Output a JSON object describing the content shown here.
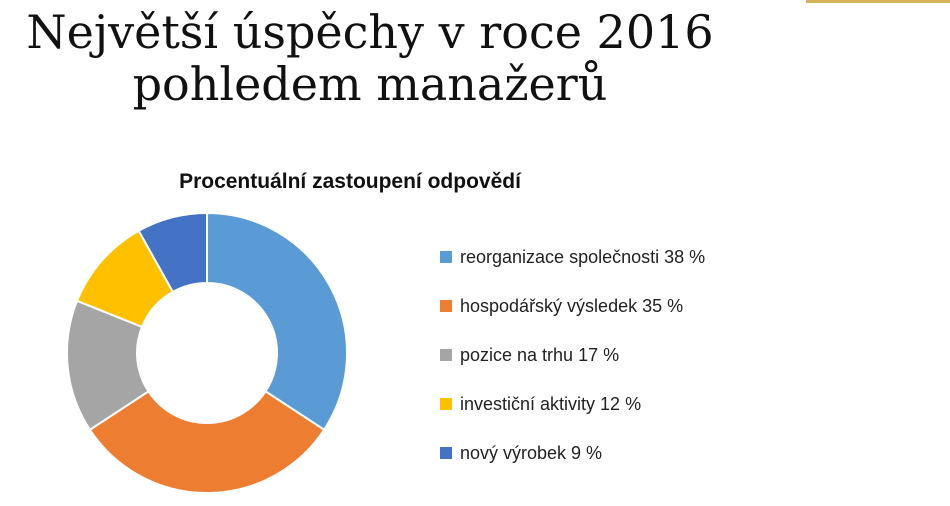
{
  "slide": {
    "title_line1": "Největší úspěchy v roce 2016",
    "title_line2": "pohledem manažerů",
    "accent_color": "#d4b45a"
  },
  "chart_data": {
    "type": "pie",
    "title": "Procentuální zastoupení odpovědí",
    "donut": true,
    "legend_position": "right",
    "slices": [
      {
        "label": "reorganizace společnosti 38 %",
        "value": 38,
        "color": "#5b9bd5"
      },
      {
        "label": "hospodářský výsledek 35 %",
        "value": 35,
        "color": "#ed7d31"
      },
      {
        "label": "pozice na trhu 17 %",
        "value": 17,
        "color": "#a5a5a5"
      },
      {
        "label": "investiční aktivity 12 %",
        "value": 12,
        "color": "#ffc000"
      },
      {
        "label": "nový výrobek 9 %",
        "value": 9,
        "color": "#4472c4"
      }
    ]
  }
}
